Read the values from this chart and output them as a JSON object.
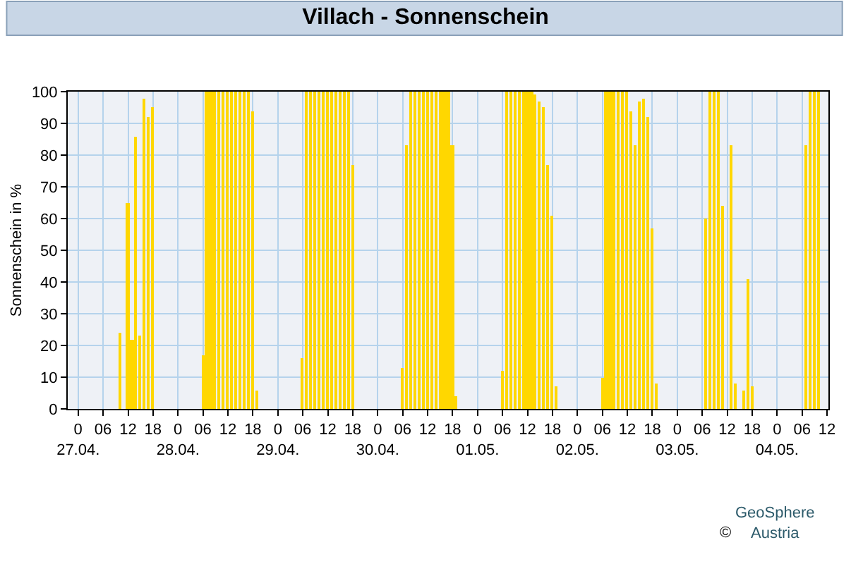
{
  "chart_data": {
    "type": "bar",
    "title": "Villach - Sonnenschein",
    "ylabel": "Sonnenschein in %",
    "x": [
      "--04-27T10:00",
      "--04-27T12:00",
      "--04-27T13:00",
      "--04-27T14:00",
      "--04-27T15:00",
      "--04-27T16:00",
      "--04-27T17:00",
      "--04-27T18:00",
      "--04-28T06:00",
      "--04-28T07:00",
      "--04-28T08:00",
      "--04-28T09:00",
      "--04-28T10:00",
      "--04-28T11:00",
      "--04-28T12:00",
      "--04-28T13:00",
      "--04-28T14:00",
      "--04-28T15:00",
      "--04-28T16:00",
      "--04-28T17:00",
      "--04-28T18:00",
      "--04-28T19:00",
      "--04-29T06:00",
      "--04-29T07:00",
      "--04-29T08:00",
      "--04-29T09:00",
      "--04-29T10:00",
      "--04-29T11:00",
      "--04-29T12:00",
      "--04-29T13:00",
      "--04-29T14:00",
      "--04-29T15:00",
      "--04-29T16:00",
      "--04-29T17:00",
      "--04-29T18:00",
      "--04-30T06:00",
      "--04-30T07:00",
      "--04-30T08:00",
      "--04-30T09:00",
      "--04-30T10:00",
      "--04-30T11:00",
      "--04-30T12:00",
      "--04-30T13:00",
      "--04-30T14:00",
      "--04-30T15:00",
      "--04-30T16:00",
      "--04-30T17:00",
      "--04-30T18:00",
      "--04-30T19:00",
      "--05-01T06:00",
      "--05-01T07:00",
      "--05-01T08:00",
      "--05-01T09:00",
      "--05-01T10:00",
      "--05-01T11:00",
      "--05-01T12:00",
      "--05-01T13:00",
      "--05-01T14:00",
      "--05-01T15:00",
      "--05-01T16:00",
      "--05-01T17:00",
      "--05-01T18:00",
      "--05-01T19:00",
      "--05-02T06:00",
      "--05-02T07:00",
      "--05-02T08:00",
      "--05-02T09:00",
      "--05-02T10:00",
      "--05-02T11:00",
      "--05-02T12:00",
      "--05-02T13:00",
      "--05-02T14:00",
      "--05-02T15:00",
      "--05-02T16:00",
      "--05-02T17:00",
      "--05-02T18:00",
      "--05-02T19:00",
      "--05-03T07:00",
      "--05-03T08:00",
      "--05-03T09:00",
      "--05-03T10:00",
      "--05-03T11:00",
      "--05-03T13:00",
      "--05-03T14:00",
      "--05-03T16:00",
      "--05-03T17:00",
      "--05-03T18:00",
      "--05-04T07:00",
      "--05-04T08:00",
      "--05-04T09:00",
      "--05-04T10:00"
    ],
    "values": [
      24,
      65,
      22,
      86,
      23,
      98,
      92,
      95,
      17,
      100,
      100,
      100,
      100,
      100,
      100,
      100,
      100,
      100,
      100,
      100,
      94,
      6,
      16,
      100,
      100,
      100,
      100,
      100,
      100,
      100,
      100,
      100,
      100,
      100,
      77,
      13,
      83,
      100,
      100,
      100,
      100,
      100,
      100,
      100,
      100,
      100,
      100,
      83,
      4,
      12,
      100,
      100,
      100,
      100,
      100,
      100,
      100,
      99,
      97,
      95,
      77,
      61,
      7,
      10,
      100,
      100,
      100,
      100,
      100,
      100,
      94,
      83,
      97,
      98,
      92,
      57,
      8,
      60,
      100,
      100,
      100,
      64,
      83,
      8,
      6,
      41,
      7,
      83,
      100,
      100,
      100
    ],
    "color": "#ffd700",
    "xlim": [
      "--04-26T21:30",
      "--05-04T12:20"
    ],
    "xticks": [
      {
        "value": "--04-27T00:00",
        "label": "0\n27.04."
      },
      {
        "value": "--04-27T06:00",
        "label": "06"
      },
      {
        "value": "--04-27T12:00",
        "label": "12"
      },
      {
        "value": "--04-27T18:00",
        "label": "18"
      },
      {
        "value": "--04-28T00:00",
        "label": "0\n28.04."
      },
      {
        "value": "--04-28T06:00",
        "label": "06"
      },
      {
        "value": "--04-28T12:00",
        "label": "12"
      },
      {
        "value": "--04-28T18:00",
        "label": "18"
      },
      {
        "value": "--04-29T00:00",
        "label": "0\n29.04."
      },
      {
        "value": "--04-29T06:00",
        "label": "06"
      },
      {
        "value": "--04-29T12:00",
        "label": "12"
      },
      {
        "value": "--04-29T18:00",
        "label": "18"
      },
      {
        "value": "--04-30T00:00",
        "label": "0\n30.04."
      },
      {
        "value": "--04-30T06:00",
        "label": "06"
      },
      {
        "value": "--04-30T12:00",
        "label": "12"
      },
      {
        "value": "--04-30T18:00",
        "label": "18"
      },
      {
        "value": "--05-01T00:00",
        "label": "0\n01.05."
      },
      {
        "value": "--05-01T06:00",
        "label": "06"
      },
      {
        "value": "--05-01T12:00",
        "label": "12"
      },
      {
        "value": "--05-01T18:00",
        "label": "18"
      },
      {
        "value": "--05-02T00:00",
        "label": "0\n02.05."
      },
      {
        "value": "--05-02T06:00",
        "label": "06"
      },
      {
        "value": "--05-02T12:00",
        "label": "12"
      },
      {
        "value": "--05-02T18:00",
        "label": "18"
      },
      {
        "value": "--05-03T00:00",
        "label": "0\n03.05."
      },
      {
        "value": "--05-03T06:00",
        "label": "06"
      },
      {
        "value": "--05-03T12:00",
        "label": "12"
      },
      {
        "value": "--05-03T18:00",
        "label": "18"
      },
      {
        "value": "--05-04T00:00",
        "label": "0\n04.05."
      },
      {
        "value": "--05-04T06:00",
        "label": "06"
      },
      {
        "value": "--05-04T12:00",
        "label": "12"
      }
    ],
    "ylim": [
      0,
      100
    ],
    "yticks": [
      0,
      10,
      20,
      30,
      40,
      50,
      60,
      70,
      80,
      90,
      100
    ],
    "grid": true,
    "annotations": [
      "©",
      "GeoSphere\nAustria"
    ]
  }
}
